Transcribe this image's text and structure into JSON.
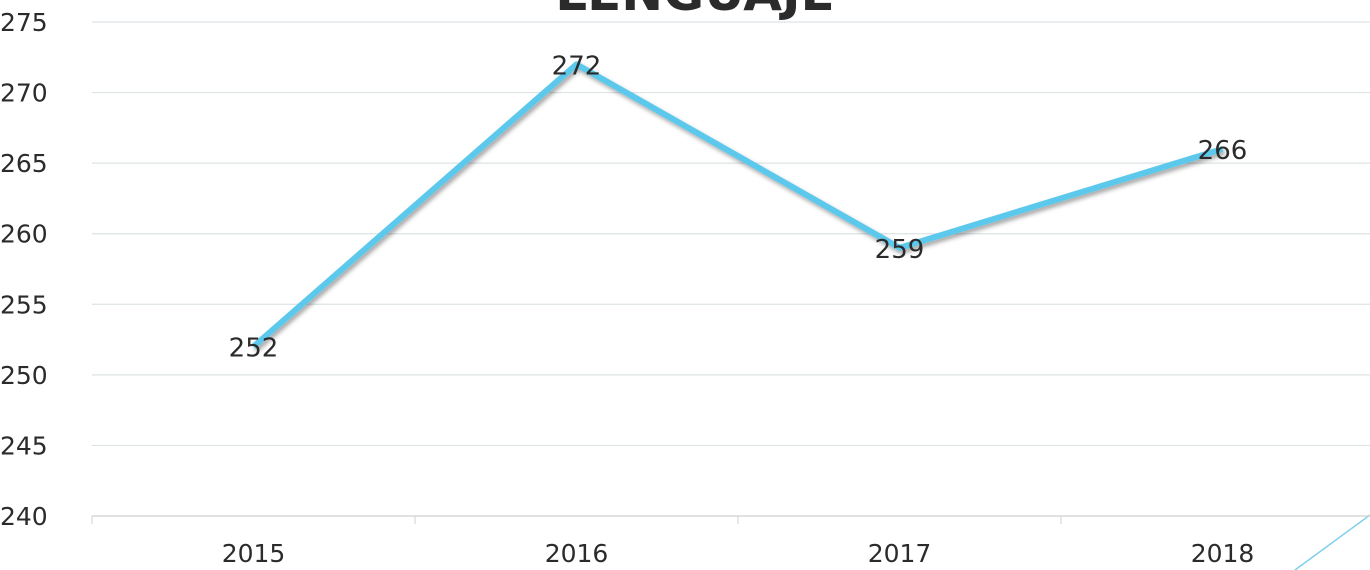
{
  "chart_data": {
    "type": "line",
    "title": "LENGUAJE",
    "categories": [
      "2015",
      "2016",
      "2017",
      "2018"
    ],
    "series": [
      {
        "name": "Lenguaje",
        "color": "#5bc8ec",
        "values": [
          252,
          272,
          259,
          266
        ]
      }
    ],
    "ylim": [
      240,
      275
    ],
    "yticks": [
      240,
      245,
      250,
      255,
      260,
      265,
      270,
      275
    ],
    "grid": true
  }
}
